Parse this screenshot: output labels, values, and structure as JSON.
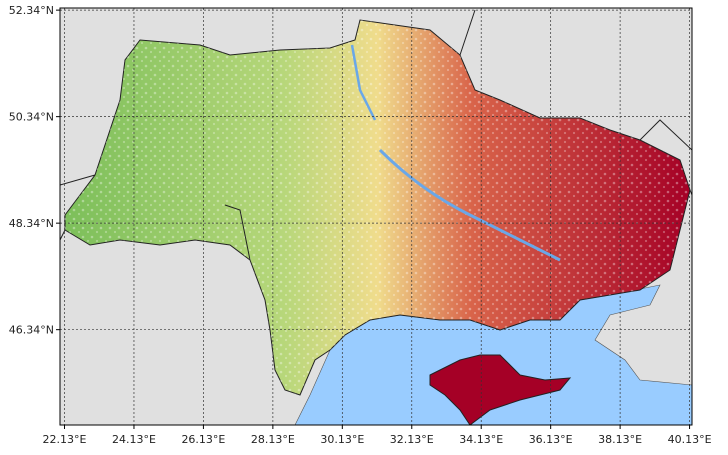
{
  "map": {
    "xlim": [
      22.0,
      40.2
    ],
    "ylim": [
      44.55,
      52.38
    ],
    "grid": true,
    "xticks": [
      {
        "value": 22.13,
        "label": "22.13°E"
      },
      {
        "value": 24.13,
        "label": "24.13°E"
      },
      {
        "value": 26.13,
        "label": "26.13°E"
      },
      {
        "value": 28.13,
        "label": "28.13°E"
      },
      {
        "value": 30.13,
        "label": "30.13°E"
      },
      {
        "value": 32.13,
        "label": "32.13°E"
      },
      {
        "value": 34.13,
        "label": "34.13°E"
      },
      {
        "value": 36.13,
        "label": "36.13°E"
      },
      {
        "value": 38.13,
        "label": "38.13°E"
      },
      {
        "value": 40.13,
        "label": "40.13°E"
      }
    ],
    "yticks": [
      {
        "value": 52.34,
        "label": "52.34°N"
      },
      {
        "value": 50.34,
        "label": "50.34°N"
      },
      {
        "value": 48.34,
        "label": "48.34°N"
      },
      {
        "value": 46.34,
        "label": "46.34°N"
      }
    ]
  }
}
